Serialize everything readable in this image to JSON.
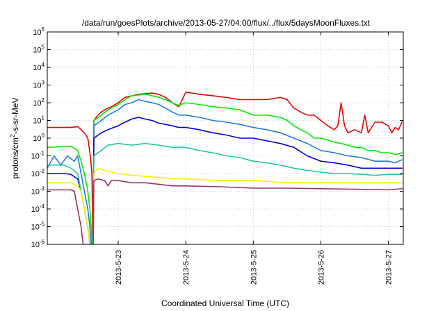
{
  "chart_data": {
    "type": "line",
    "title": "/data/run/goesPlots/archive/2013-05-27/04:00/flux/../flux/5daysMoonFluxes.txt",
    "xlabel": "Coordinated Universal Time (UTC)",
    "ylabel": "protons/cm2-s-sr-MeV",
    "yscale": "log",
    "ylim": [
      1e-06,
      1000000.0
    ],
    "xlim": [
      -1.05,
      4.22
    ],
    "x_unit": "days since 2013-05-23 00:00 UTC",
    "x_ticks": [
      {
        "x": 0,
        "label": "2013-5-23"
      },
      {
        "x": 1,
        "label": "2013-5-24"
      },
      {
        "x": 2,
        "label": "2013-5-25"
      },
      {
        "x": 3,
        "label": "2013-5-26"
      },
      {
        "x": 4,
        "label": "2013-5-27"
      }
    ],
    "y_ticks": [
      {
        "exp": -6,
        "label": "10",
        "sup": "-6"
      },
      {
        "exp": -5,
        "label": "10",
        "sup": "-5"
      },
      {
        "exp": -4,
        "label": "10",
        "sup": "-4"
      },
      {
        "exp": -3,
        "label": "10",
        "sup": "-3"
      },
      {
        "exp": -2,
        "label": "10",
        "sup": "-2"
      },
      {
        "exp": -1,
        "label": "10",
        "sup": "-1"
      },
      {
        "exp": 0,
        "label": "10",
        "sup": "0"
      },
      {
        "exp": 1,
        "label": "10",
        "sup": "1"
      },
      {
        "exp": 2,
        "label": "10",
        "sup": "2"
      },
      {
        "exp": 3,
        "label": "10",
        "sup": "3"
      },
      {
        "exp": 4,
        "label": "10",
        "sup": "4"
      },
      {
        "exp": 5,
        "label": "10",
        "sup": "5"
      },
      {
        "exp": 6,
        "label": "10",
        "sup": "6"
      }
    ],
    "grid": true,
    "series": [
      {
        "color": "#ee0000",
        "points": [
          [
            -1.05,
            4
          ],
          [
            -0.7,
            4
          ],
          [
            -0.6,
            4.5
          ],
          [
            -0.5,
            2
          ],
          [
            -0.45,
            1
          ],
          [
            -0.43,
            0.3
          ],
          [
            -0.41,
            0.08
          ],
          [
            -0.39,
            0.01
          ],
          [
            -0.385,
            0.001
          ],
          [
            -0.375,
            1e-06
          ],
          [
            -0.38,
            1e-06
          ],
          [
            -0.38,
            1e-06
          ],
          [
            -0.38,
            1e-06
          ],
          [
            -0.38,
            1e-06
          ],
          [
            -0.37,
            1e-06
          ],
          [
            -0.37,
            1e-06
          ],
          [
            -0.37,
            1e-06
          ],
          [
            -0.37,
            1e-06
          ],
          [
            -0.37,
            1e-06
          ],
          [
            -0.37,
            1e-06
          ],
          [
            -0.37,
            1e-06
          ],
          [
            -0.36,
            10
          ],
          [
            -0.3,
            20
          ],
          [
            -0.25,
            30
          ],
          [
            -0.15,
            50
          ],
          [
            -0.1,
            60
          ],
          [
            0,
            100
          ],
          [
            0.1,
            200
          ],
          [
            0.3,
            300
          ],
          [
            0.5,
            350
          ],
          [
            0.6,
            300
          ],
          [
            0.7,
            200
          ],
          [
            0.8,
            100
          ],
          [
            0.9,
            60
          ],
          [
            1.0,
            400
          ],
          [
            1.2,
            300
          ],
          [
            1.4,
            250
          ],
          [
            1.6,
            200
          ],
          [
            1.8,
            150
          ],
          [
            2.0,
            150
          ],
          [
            2.2,
            150
          ],
          [
            2.4,
            200
          ],
          [
            2.5,
            150
          ],
          [
            2.6,
            50
          ],
          [
            2.7,
            30
          ],
          [
            2.8,
            20
          ],
          [
            2.9,
            20
          ],
          [
            3.0,
            10
          ],
          [
            3.1,
            5
          ],
          [
            3.2,
            3
          ],
          [
            3.25,
            5
          ],
          [
            3.3,
            100
          ],
          [
            3.35,
            5
          ],
          [
            3.4,
            2
          ],
          [
            3.5,
            3
          ],
          [
            3.6,
            2
          ],
          [
            3.65,
            20
          ],
          [
            3.7,
            2
          ],
          [
            3.8,
            8
          ],
          [
            3.9,
            8
          ],
          [
            4.0,
            5
          ],
          [
            4.05,
            2
          ],
          [
            4.1,
            4
          ],
          [
            4.15,
            3
          ],
          [
            4.2,
            8
          ]
        ]
      },
      {
        "color": "#00ee00",
        "points": [
          [
            -1.05,
            0.3
          ],
          [
            -0.7,
            0.35
          ],
          [
            -0.6,
            0.2
          ],
          [
            -0.55,
            0.05
          ],
          [
            -0.5,
            0.01
          ],
          [
            -0.45,
            0.001
          ],
          [
            -0.42,
            0.0001
          ],
          [
            -0.4,
            1e-05
          ],
          [
            -0.385,
            1e-06
          ],
          [
            -0.37,
            1e-06
          ],
          [
            -0.36,
            10
          ],
          [
            -0.25,
            20
          ],
          [
            -0.15,
            40
          ],
          [
            0,
            80
          ],
          [
            0.1,
            150
          ],
          [
            0.2,
            250
          ],
          [
            0.4,
            300
          ],
          [
            0.5,
            250
          ],
          [
            0.6,
            200
          ],
          [
            0.7,
            150
          ],
          [
            0.8,
            100
          ],
          [
            0.9,
            70
          ],
          [
            1.0,
            100
          ],
          [
            1.2,
            80
          ],
          [
            1.4,
            60
          ],
          [
            1.6,
            50
          ],
          [
            1.8,
            40
          ],
          [
            2.0,
            20
          ],
          [
            2.2,
            20
          ],
          [
            2.4,
            15
          ],
          [
            2.5,
            10
          ],
          [
            2.6,
            5
          ],
          [
            2.7,
            3
          ],
          [
            2.8,
            2
          ],
          [
            2.9,
            1
          ],
          [
            3.0,
            1
          ],
          [
            3.1,
            0.8
          ],
          [
            3.2,
            0.6
          ],
          [
            3.3,
            0.5
          ],
          [
            3.4,
            0.4
          ],
          [
            3.5,
            0.3
          ],
          [
            3.6,
            0.3
          ],
          [
            3.7,
            0.2
          ],
          [
            3.8,
            0.2
          ],
          [
            3.9,
            0.15
          ],
          [
            4.0,
            0.15
          ],
          [
            4.1,
            0.12
          ],
          [
            4.2,
            0.15
          ]
        ]
      },
      {
        "color": "#1e7be6",
        "points": [
          [
            -1.05,
            0.02
          ],
          [
            -0.95,
            0.1
          ],
          [
            -0.85,
            0.03
          ],
          [
            -0.75,
            0.1
          ],
          [
            -0.65,
            0.05
          ],
          [
            -0.6,
            0.1
          ],
          [
            -0.55,
            0.01
          ],
          [
            -0.5,
            0.001
          ],
          [
            -0.45,
            0.0001
          ],
          [
            -0.42,
            1e-05
          ],
          [
            -0.4,
            1e-06
          ],
          [
            -0.37,
            1e-06
          ],
          [
            -0.36,
            5
          ],
          [
            -0.25,
            10
          ],
          [
            -0.15,
            20
          ],
          [
            0,
            40
          ],
          [
            0.1,
            80
          ],
          [
            0.2,
            100
          ],
          [
            0.3,
            150
          ],
          [
            0.4,
            120
          ],
          [
            0.5,
            100
          ],
          [
            0.6,
            80
          ],
          [
            0.7,
            50
          ],
          [
            0.8,
            30
          ],
          [
            0.9,
            20
          ],
          [
            1.0,
            20
          ],
          [
            1.2,
            15
          ],
          [
            1.4,
            10
          ],
          [
            1.6,
            8
          ],
          [
            1.8,
            6
          ],
          [
            2.0,
            4
          ],
          [
            2.2,
            3
          ],
          [
            2.4,
            2
          ],
          [
            2.6,
            1
          ],
          [
            2.8,
            0.5
          ],
          [
            3.0,
            0.2
          ],
          [
            3.2,
            0.15
          ],
          [
            3.4,
            0.1
          ],
          [
            3.6,
            0.08
          ],
          [
            3.8,
            0.05
          ],
          [
            4.0,
            0.05
          ],
          [
            4.1,
            0.04
          ],
          [
            4.2,
            0.06
          ]
        ]
      },
      {
        "color": "#0000dd",
        "points": [
          [
            -1.05,
            0.01
          ],
          [
            -0.9,
            0.01
          ],
          [
            -0.8,
            0.01
          ],
          [
            -0.7,
            0.009
          ],
          [
            -0.6,
            0.005
          ],
          [
            -0.55,
            0.001
          ],
          [
            -0.5,
            0.0001
          ],
          [
            -0.45,
            1e-05
          ],
          [
            -0.42,
            1e-06
          ],
          [
            -0.37,
            1e-06
          ],
          [
            -0.36,
            1
          ],
          [
            -0.25,
            2
          ],
          [
            -0.15,
            3
          ],
          [
            0,
            5
          ],
          [
            0.1,
            8
          ],
          [
            0.2,
            12
          ],
          [
            0.3,
            15
          ],
          [
            0.4,
            12
          ],
          [
            0.5,
            10
          ],
          [
            0.6,
            7
          ],
          [
            0.7,
            6
          ],
          [
            0.8,
            5
          ],
          [
            0.9,
            4
          ],
          [
            1.0,
            4
          ],
          [
            1.2,
            3
          ],
          [
            1.4,
            2
          ],
          [
            1.6,
            1.5
          ],
          [
            1.8,
            1
          ],
          [
            2.0,
            1
          ],
          [
            2.2,
            0.7
          ],
          [
            2.4,
            0.5
          ],
          [
            2.6,
            0.3
          ],
          [
            2.8,
            0.1
          ],
          [
            3.0,
            0.05
          ],
          [
            3.2,
            0.04
          ],
          [
            3.4,
            0.03
          ],
          [
            3.6,
            0.02
          ],
          [
            3.8,
            0.02
          ],
          [
            4.0,
            0.02
          ],
          [
            4.2,
            0.02
          ]
        ]
      },
      {
        "color": "#20c8a0",
        "points": [
          [
            -1.05,
            0.03
          ],
          [
            -0.9,
            0.03
          ],
          [
            -0.8,
            0.03
          ],
          [
            -0.7,
            0.02
          ],
          [
            -0.6,
            0.01
          ],
          [
            -0.55,
            0.001
          ],
          [
            -0.5,
            0.0001
          ],
          [
            -0.45,
            1e-05
          ],
          [
            -0.42,
            1e-06
          ],
          [
            -0.37,
            1e-06
          ],
          [
            -0.36,
            0.1
          ],
          [
            -0.25,
            0.2
          ],
          [
            -0.15,
            0.4
          ],
          [
            0,
            0.5
          ],
          [
            0.2,
            0.4
          ],
          [
            0.4,
            0.5
          ],
          [
            0.6,
            0.4
          ],
          [
            0.8,
            0.3
          ],
          [
            1.0,
            0.3
          ],
          [
            1.2,
            0.2
          ],
          [
            1.4,
            0.15
          ],
          [
            1.6,
            0.1
          ],
          [
            1.8,
            0.08
          ],
          [
            2.0,
            0.05
          ],
          [
            2.2,
            0.04
          ],
          [
            2.4,
            0.03
          ],
          [
            2.6,
            0.02
          ],
          [
            2.8,
            0.015
          ],
          [
            3.0,
            0.012
          ],
          [
            3.2,
            0.01
          ],
          [
            3.4,
            0.01
          ],
          [
            3.6,
            0.009
          ],
          [
            3.8,
            0.008
          ],
          [
            4.0,
            0.009
          ],
          [
            4.2,
            0.009
          ]
        ]
      },
      {
        "color": "#ffee00",
        "points": [
          [
            -1.05,
            0.003
          ],
          [
            -0.9,
            0.003
          ],
          [
            -0.8,
            0.003
          ],
          [
            -0.7,
            0.003
          ],
          [
            -0.6,
            0.002
          ],
          [
            -0.55,
            0.001
          ],
          [
            -0.5,
            0.0001
          ],
          [
            -0.45,
            1e-05
          ],
          [
            -0.42,
            1e-06
          ],
          [
            -0.37,
            1e-06
          ],
          [
            -0.36,
            0.01
          ],
          [
            -0.3,
            0.02
          ],
          [
            -0.2,
            0.015
          ],
          [
            0,
            0.01
          ],
          [
            0.2,
            0.008
          ],
          [
            0.4,
            0.007
          ],
          [
            0.6,
            0.006
          ],
          [
            0.8,
            0.005
          ],
          [
            1.0,
            0.005
          ],
          [
            1.5,
            0.004
          ],
          [
            2.0,
            0.004
          ],
          [
            2.5,
            0.003
          ],
          [
            3.0,
            0.003
          ],
          [
            3.5,
            0.003
          ],
          [
            4.0,
            0.003
          ],
          [
            4.2,
            0.003
          ]
        ]
      },
      {
        "color": "#993366",
        "points": [
          [
            -1.05,
            0.0012
          ],
          [
            -0.9,
            0.0012
          ],
          [
            -0.8,
            0.0012
          ],
          [
            -0.7,
            0.0012
          ],
          [
            -0.65,
            0.001
          ],
          [
            -0.6,
            0.0001
          ],
          [
            -0.55,
            1e-05
          ],
          [
            -0.52,
            1e-06
          ],
          [
            -0.37,
            1e-06
          ],
          [
            -0.36,
            0.004
          ],
          [
            -0.3,
            0.005
          ],
          [
            -0.2,
            0.004
          ],
          [
            -0.15,
            0.002
          ],
          [
            -0.1,
            0.004
          ],
          [
            0,
            0.004
          ],
          [
            0.2,
            0.003
          ],
          [
            0.4,
            0.003
          ],
          [
            0.6,
            0.0025
          ],
          [
            0.8,
            0.002
          ],
          [
            1.0,
            0.002
          ],
          [
            1.5,
            0.0018
          ],
          [
            2.0,
            0.0015
          ],
          [
            2.5,
            0.0015
          ],
          [
            3.0,
            0.0014
          ],
          [
            3.5,
            0.0013
          ],
          [
            4.0,
            0.0012
          ],
          [
            4.2,
            0.0014
          ]
        ]
      }
    ]
  }
}
